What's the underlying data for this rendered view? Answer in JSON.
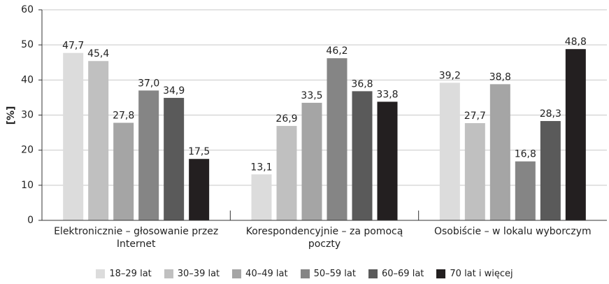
{
  "chart_data": {
    "type": "bar",
    "y_label": "[%]",
    "categories": [
      "Elektronicznie – głosowanie przez Internet",
      "Korespondencyjnie – za pomocą poczty",
      "Osobiście – w lokalu wyborczym"
    ],
    "series": [
      {
        "name": "18–29 lat",
        "color": "#dcdcdc",
        "values": [
          47.7,
          13.1,
          39.2
        ],
        "value_labels": [
          "47,7",
          "13,1",
          "39,2"
        ]
      },
      {
        "name": "30–39 lat",
        "color": "#c0c0c0",
        "values": [
          45.4,
          26.9,
          27.7
        ],
        "value_labels": [
          "45,4",
          "26,9",
          "27,7"
        ]
      },
      {
        "name": "40–49 lat",
        "color": "#a5a5a5",
        "values": [
          27.8,
          33.5,
          38.8
        ],
        "value_labels": [
          "27,8",
          "33,5",
          "38,8"
        ]
      },
      {
        "name": "50–59 lat",
        "color": "#858585",
        "values": [
          37.0,
          46.2,
          16.8
        ],
        "value_labels": [
          "37,0",
          "46,2",
          "16,8"
        ]
      },
      {
        "name": "60–69 lat",
        "color": "#5a5a5a",
        "values": [
          34.9,
          36.8,
          28.3
        ],
        "value_labels": [
          "34,9",
          "36,8",
          "28,3"
        ]
      },
      {
        "name": "70 lat i więcej",
        "color": "#231f20",
        "values": [
          17.5,
          33.8,
          48.8
        ],
        "value_labels": [
          "17,5",
          "33,8",
          "48,8"
        ]
      }
    ],
    "ylim": [
      0,
      60
    ],
    "yticks": [
      0,
      10,
      20,
      30,
      40,
      50,
      60
    ],
    "grid": true
  }
}
